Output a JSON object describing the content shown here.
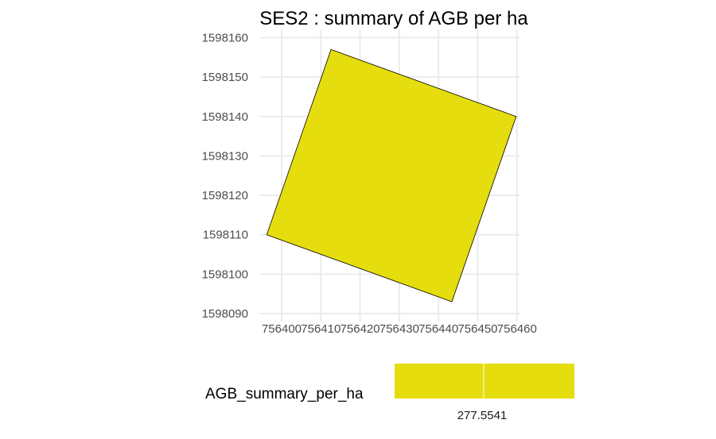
{
  "chart_data": {
    "type": "map",
    "title": "SES2 : summary of AGB per ha",
    "xlabel": "",
    "ylabel": "",
    "xlim": [
      756395,
      756460
    ],
    "ylim": [
      1598090,
      1598160
    ],
    "x_ticks": [
      756400,
      756410,
      756420,
      756430,
      756440,
      756450,
      756460
    ],
    "x_tick_labels": [
      "756400",
      "756410",
      "756420",
      "756430",
      "756440",
      "756450",
      "756460"
    ],
    "y_ticks": [
      1598090,
      1598100,
      1598110,
      1598120,
      1598130,
      1598140,
      1598150,
      1598160
    ],
    "y_tick_labels": [
      "1598090",
      "1598100",
      "1598110",
      "1598120",
      "1598130",
      "1598140",
      "1598150",
      "1598160"
    ],
    "grid": true,
    "polygon": {
      "vertices": [
        [
          756412.6,
          1598157
        ],
        [
          756459.8,
          1598140
        ],
        [
          756443.4,
          1598093
        ],
        [
          756396.2,
          1598110
        ]
      ],
      "value": 277.5541,
      "fill": "#e5dd0e",
      "stroke": "#000000"
    },
    "legend": {
      "title": "AGB_summary_per_ha",
      "position": "bottom",
      "value_label": "277.5541",
      "color": "#e5dd0e"
    }
  }
}
